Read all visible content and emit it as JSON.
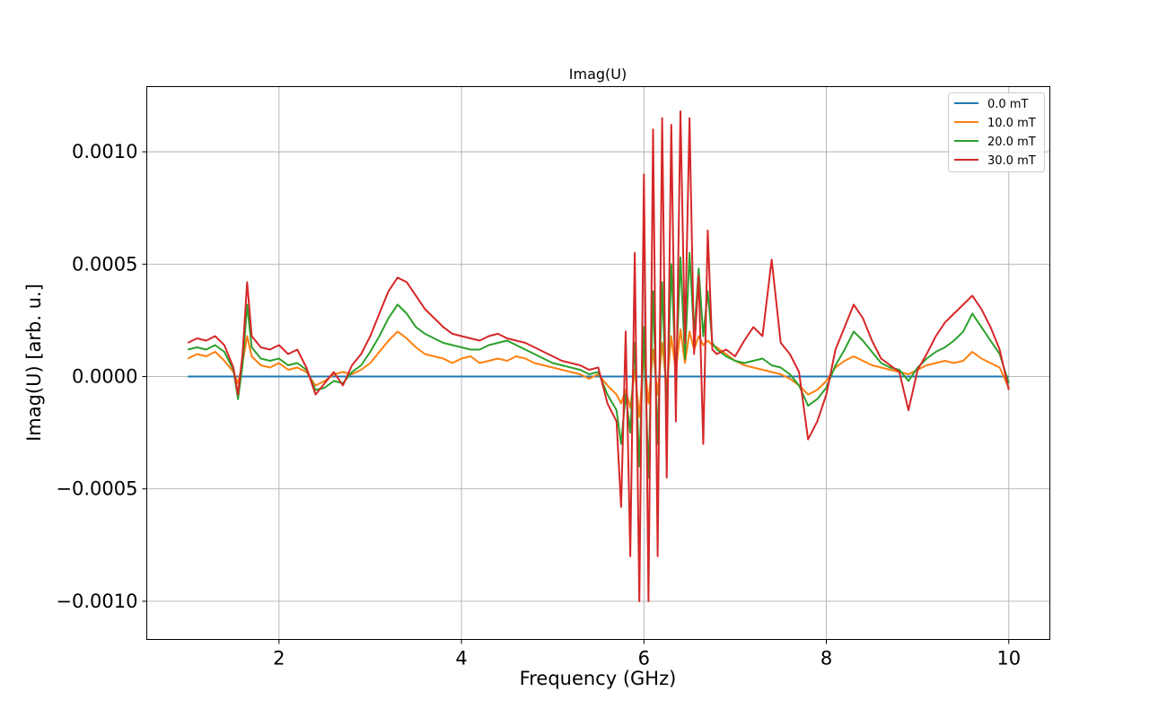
{
  "chart_data": {
    "type": "line",
    "title": "Imag(U)",
    "xlabel": "Frequency (GHz)",
    "ylabel": "Imag(U) [arb. u.]",
    "xlim": [
      0.55,
      10.45
    ],
    "ylim": [
      -0.00117,
      0.00129
    ],
    "xticks": [
      2,
      4,
      6,
      8,
      10
    ],
    "xtick_labels": [
      "2",
      "4",
      "6",
      "8",
      "10"
    ],
    "yticks": [
      -0.001,
      -0.0005,
      0.0,
      0.0005,
      0.001
    ],
    "ytick_labels": [
      "−0.0010",
      "−0.0005",
      "0.0000",
      "0.0005",
      "0.0010"
    ],
    "grid": true,
    "legend_position": "top-right",
    "series": [
      {
        "name": "0.0 mT",
        "color": "#1f77b4",
        "x": [
          1.0,
          10.0
        ],
        "y": [
          0.0,
          0.0
        ]
      },
      {
        "name": "10.0 mT",
        "color": "#ff7f0e",
        "x": [
          1.0,
          1.1,
          1.2,
          1.3,
          1.4,
          1.5,
          1.55,
          1.6,
          1.65,
          1.7,
          1.8,
          1.9,
          2.0,
          2.1,
          2.2,
          2.3,
          2.4,
          2.5,
          2.6,
          2.7,
          2.8,
          2.9,
          3.0,
          3.1,
          3.2,
          3.3,
          3.4,
          3.5,
          3.6,
          3.7,
          3.8,
          3.9,
          4.0,
          4.1,
          4.2,
          4.3,
          4.4,
          4.5,
          4.6,
          4.7,
          4.8,
          4.9,
          5.0,
          5.1,
          5.2,
          5.3,
          5.4,
          5.5,
          5.6,
          5.7,
          5.75,
          5.8,
          5.85,
          5.9,
          5.95,
          6.0,
          6.05,
          6.1,
          6.15,
          6.2,
          6.25,
          6.3,
          6.35,
          6.4,
          6.45,
          6.5,
          6.55,
          6.6,
          6.65,
          6.7,
          6.75,
          6.8,
          6.9,
          7.0,
          7.1,
          7.2,
          7.3,
          7.4,
          7.5,
          7.6,
          7.7,
          7.8,
          7.9,
          8.0,
          8.1,
          8.2,
          8.3,
          8.4,
          8.5,
          8.6,
          8.7,
          8.8,
          8.9,
          9.0,
          9.1,
          9.2,
          9.3,
          9.4,
          9.5,
          9.6,
          9.7,
          9.8,
          9.9,
          10.0
        ],
        "y": [
          8e-05,
          0.0001,
          9e-05,
          0.00011,
          7e-05,
          2e-05,
          -3e-05,
          6e-05,
          0.00018,
          9e-05,
          5e-05,
          4e-05,
          6e-05,
          3e-05,
          4e-05,
          2e-05,
          -4e-05,
          -2e-05,
          1e-05,
          2e-05,
          1e-05,
          3e-05,
          6e-05,
          0.00011,
          0.00016,
          0.0002,
          0.00017,
          0.00013,
          0.0001,
          9e-05,
          8e-05,
          6e-05,
          8e-05,
          9e-05,
          6e-05,
          7e-05,
          8e-05,
          7e-05,
          9e-05,
          8e-05,
          6e-05,
          5e-05,
          4e-05,
          3e-05,
          2e-05,
          1e-05,
          -1e-05,
          1e-05,
          -4e-05,
          -8e-05,
          -0.00012,
          -6e-05,
          -0.00014,
          3e-05,
          -0.00018,
          0.0001,
          -0.00012,
          0.00012,
          -8e-05,
          0.00015,
          -5e-05,
          0.00018,
          2e-05,
          0.00021,
          6e-05,
          0.0002,
          0.00012,
          0.00018,
          0.00014,
          0.00016,
          0.00014,
          0.00013,
          0.0001,
          7e-05,
          5e-05,
          4e-05,
          3e-05,
          2e-05,
          1e-05,
          -1e-05,
          -4e-05,
          -8e-05,
          -6e-05,
          -2e-05,
          4e-05,
          7e-05,
          9e-05,
          7e-05,
          5e-05,
          4e-05,
          3e-05,
          2e-05,
          1e-05,
          3e-05,
          5e-05,
          6e-05,
          7e-05,
          6e-05,
          7e-05,
          0.00011,
          8e-05,
          6e-05,
          4e-05,
          -5e-05
        ]
      },
      {
        "name": "20.0 mT",
        "color": "#2ca02c",
        "x": [
          1.0,
          1.1,
          1.2,
          1.3,
          1.4,
          1.5,
          1.55,
          1.6,
          1.65,
          1.7,
          1.8,
          1.9,
          2.0,
          2.1,
          2.2,
          2.3,
          2.4,
          2.5,
          2.6,
          2.7,
          2.8,
          2.9,
          3.0,
          3.1,
          3.2,
          3.3,
          3.4,
          3.5,
          3.6,
          3.7,
          3.8,
          3.9,
          4.0,
          4.1,
          4.2,
          4.3,
          4.4,
          4.5,
          4.6,
          4.7,
          4.8,
          4.9,
          5.0,
          5.1,
          5.2,
          5.3,
          5.4,
          5.5,
          5.6,
          5.7,
          5.75,
          5.8,
          5.85,
          5.9,
          5.95,
          6.0,
          6.05,
          6.1,
          6.15,
          6.2,
          6.25,
          6.3,
          6.35,
          6.4,
          6.45,
          6.5,
          6.55,
          6.6,
          6.65,
          6.7,
          6.75,
          6.8,
          6.9,
          7.0,
          7.1,
          7.2,
          7.3,
          7.4,
          7.5,
          7.6,
          7.7,
          7.8,
          7.9,
          8.0,
          8.1,
          8.2,
          8.3,
          8.4,
          8.5,
          8.6,
          8.7,
          8.8,
          8.9,
          9.0,
          9.1,
          9.2,
          9.3,
          9.4,
          9.5,
          9.6,
          9.7,
          9.8,
          9.9,
          10.0
        ],
        "y": [
          0.00012,
          0.00013,
          0.00012,
          0.00014,
          0.00011,
          3e-05,
          -0.0001,
          5e-05,
          0.00032,
          0.00013,
          8e-05,
          7e-05,
          8e-05,
          5e-05,
          6e-05,
          3e-05,
          -6e-05,
          -5e-05,
          -2e-05,
          -3e-05,
          2e-05,
          5e-05,
          0.00011,
          0.00018,
          0.00026,
          0.00032,
          0.00028,
          0.00022,
          0.00019,
          0.00017,
          0.00015,
          0.00014,
          0.00013,
          0.00012,
          0.00012,
          0.00014,
          0.00015,
          0.00016,
          0.00014,
          0.00012,
          0.0001,
          8e-05,
          6e-05,
          5e-05,
          4e-05,
          3e-05,
          1e-05,
          2e-05,
          -8e-05,
          -0.00015,
          -0.0003,
          -8e-05,
          -0.00025,
          0.00015,
          -0.0004,
          0.00022,
          -0.00045,
          0.00038,
          -0.0003,
          0.00042,
          -0.00018,
          0.0005,
          0.0,
          0.00053,
          8e-05,
          0.00055,
          0.00018,
          0.00048,
          0.00018,
          0.00038,
          0.00015,
          0.00012,
          9e-05,
          7e-05,
          6e-05,
          7e-05,
          8e-05,
          5e-05,
          4e-05,
          1e-05,
          -4e-05,
          -0.00013,
          -0.0001,
          -5e-05,
          5e-05,
          0.00012,
          0.0002,
          0.00016,
          0.00011,
          6e-05,
          4e-05,
          3e-05,
          -2e-05,
          4e-05,
          8e-05,
          0.00011,
          0.00013,
          0.00016,
          0.0002,
          0.00028,
          0.00022,
          0.00016,
          0.0001,
          -3e-05
        ]
      },
      {
        "name": "30.0 mT",
        "color": "#d62728",
        "x": [
          1.0,
          1.1,
          1.2,
          1.3,
          1.4,
          1.5,
          1.55,
          1.6,
          1.65,
          1.7,
          1.8,
          1.9,
          2.0,
          2.1,
          2.2,
          2.3,
          2.4,
          2.5,
          2.6,
          2.7,
          2.8,
          2.9,
          3.0,
          3.1,
          3.2,
          3.3,
          3.4,
          3.5,
          3.6,
          3.7,
          3.8,
          3.9,
          4.0,
          4.1,
          4.2,
          4.3,
          4.4,
          4.5,
          4.6,
          4.7,
          4.8,
          4.9,
          5.0,
          5.1,
          5.2,
          5.3,
          5.4,
          5.5,
          5.6,
          5.7,
          5.75,
          5.8,
          5.85,
          5.9,
          5.95,
          6.0,
          6.05,
          6.1,
          6.15,
          6.2,
          6.25,
          6.3,
          6.35,
          6.4,
          6.45,
          6.5,
          6.55,
          6.6,
          6.65,
          6.7,
          6.75,
          6.8,
          6.9,
          7.0,
          7.1,
          7.2,
          7.3,
          7.4,
          7.5,
          7.6,
          7.7,
          7.8,
          7.9,
          8.0,
          8.1,
          8.2,
          8.3,
          8.4,
          8.5,
          8.6,
          8.7,
          8.8,
          8.9,
          9.0,
          9.1,
          9.2,
          9.3,
          9.4,
          9.5,
          9.6,
          9.7,
          9.8,
          9.9,
          10.0
        ],
        "y": [
          0.00015,
          0.00017,
          0.00016,
          0.00018,
          0.00014,
          4e-05,
          -8e-05,
          0.0001,
          0.00042,
          0.00018,
          0.00013,
          0.00012,
          0.00014,
          0.0001,
          0.00012,
          4e-05,
          -8e-05,
          -3e-05,
          2e-05,
          -4e-05,
          5e-05,
          0.0001,
          0.00018,
          0.00028,
          0.00038,
          0.00044,
          0.00042,
          0.00036,
          0.0003,
          0.00026,
          0.00022,
          0.00019,
          0.00018,
          0.00017,
          0.00016,
          0.00018,
          0.00019,
          0.00017,
          0.00016,
          0.00015,
          0.00013,
          0.00011,
          9e-05,
          7e-05,
          6e-05,
          5e-05,
          3e-05,
          4e-05,
          -0.00012,
          -0.0002,
          -0.00058,
          0.0002,
          -0.0008,
          0.00055,
          -0.001,
          0.0009,
          -0.001,
          0.0011,
          -0.0008,
          0.00115,
          -0.00045,
          0.00112,
          -0.0002,
          0.00118,
          0.00015,
          0.00115,
          0.0001,
          0.00045,
          -0.0003,
          0.00065,
          0.00012,
          0.0001,
          0.00012,
          9e-05,
          0.00016,
          0.00022,
          0.00018,
          0.00052,
          0.00015,
          0.0001,
          2e-05,
          -0.00028,
          -0.0002,
          -8e-05,
          0.00012,
          0.00022,
          0.00032,
          0.00026,
          0.00016,
          8e-05,
          5e-05,
          2e-05,
          -0.00015,
          3e-05,
          0.0001,
          0.00018,
          0.00024,
          0.00028,
          0.00032,
          0.00036,
          0.0003,
          0.00022,
          0.00012,
          -6e-05
        ]
      }
    ]
  }
}
